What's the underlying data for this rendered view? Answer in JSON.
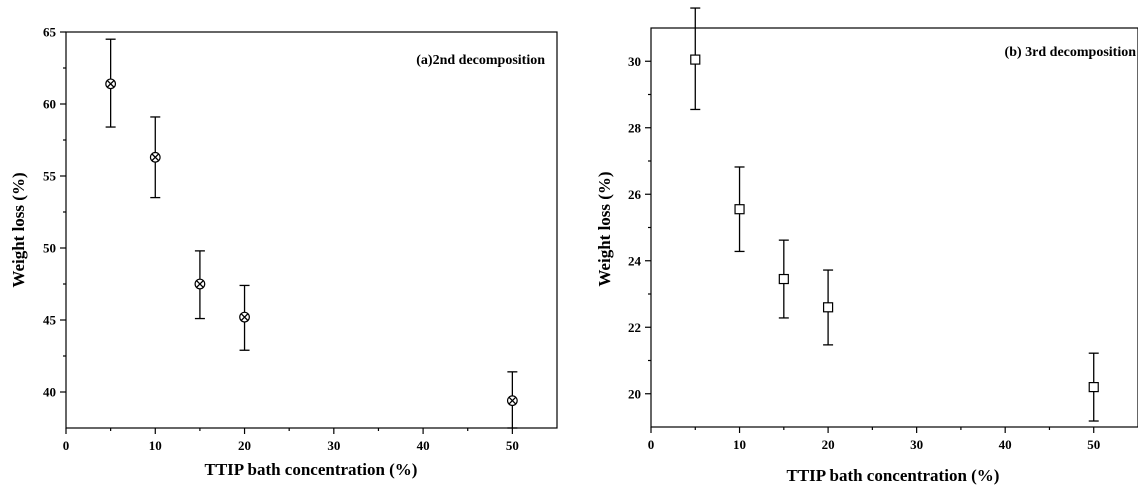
{
  "chart_data": [
    {
      "type": "scatter",
      "panel_label": "(a)2nd decomposition",
      "xlabel": "TTIP bath concentration (%)",
      "ylabel": "Weight loss (%)",
      "xlim": [
        0,
        55
      ],
      "ylim": [
        37.5,
        65
      ],
      "x_ticks": [
        0,
        10,
        20,
        30,
        40,
        50
      ],
      "y_ticks": [
        40,
        45,
        50,
        55,
        60,
        65
      ],
      "marker": "circle-x",
      "points": [
        {
          "x": 5,
          "y": 61.4,
          "err_low": 58.4,
          "err_high": 64.5
        },
        {
          "x": 10,
          "y": 56.3,
          "err_low": 53.5,
          "err_high": 59.1
        },
        {
          "x": 15,
          "y": 47.5,
          "err_low": 45.1,
          "err_high": 49.8
        },
        {
          "x": 20,
          "y": 45.2,
          "err_low": 42.9,
          "err_high": 47.4
        },
        {
          "x": 50,
          "y": 39.4,
          "err_low": 37.5,
          "err_high": 41.4
        }
      ]
    },
    {
      "type": "scatter",
      "panel_label": "(b) 3rd decomposition",
      "xlabel": "TTIP bath concentration (%)",
      "ylabel": "Weight loss (%)",
      "xlim": [
        0,
        55
      ],
      "ylim": [
        19,
        31
      ],
      "x_ticks": [
        0,
        10,
        20,
        30,
        40,
        50
      ],
      "y_ticks": [
        20,
        22,
        24,
        26,
        28,
        30
      ],
      "marker": "square",
      "points": [
        {
          "x": 5,
          "y": 30.05,
          "err_low": 28.55,
          "err_high": 31.6
        },
        {
          "x": 10,
          "y": 25.55,
          "err_low": 24.28,
          "err_high": 26.82
        },
        {
          "x": 15,
          "y": 23.45,
          "err_low": 22.28,
          "err_high": 24.62
        },
        {
          "x": 20,
          "y": 22.6,
          "err_low": 21.47,
          "err_high": 23.72
        },
        {
          "x": 50,
          "y": 20.2,
          "err_low": 19.18,
          "err_high": 21.22
        }
      ]
    }
  ]
}
